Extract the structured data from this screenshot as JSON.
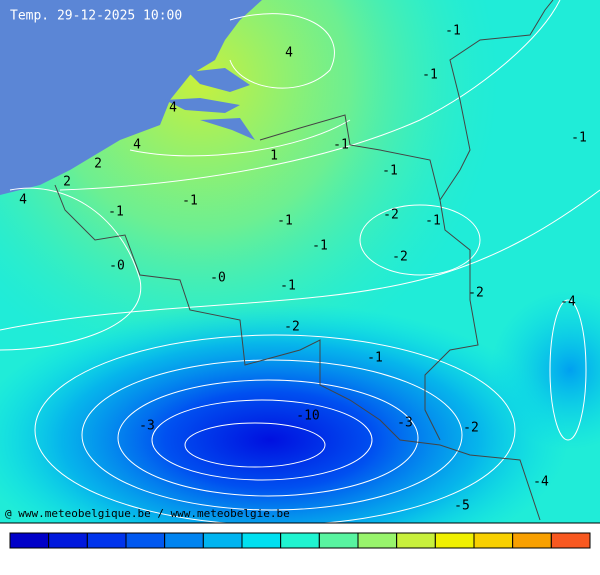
{
  "header": {
    "title": "Temp. 29-12-2025 10:00"
  },
  "contour_labels": [
    "4",
    "-1",
    "-1",
    "4",
    "4",
    "1",
    "-1",
    "2",
    "2",
    "4",
    "-1",
    "-1",
    "-1",
    "-1",
    "-1",
    "-2",
    "-1",
    "-1",
    "-0",
    "-2",
    "-0",
    "-1",
    "-2",
    "-4",
    "-2",
    "-1",
    "-10",
    "-3",
    "-3",
    "-2",
    "-4",
    "-5"
  ],
  "credit": "@ www.meteobelgique.be / www.meteobelgie.be",
  "colorbar": [
    "#0000c8",
    "#0018dc",
    "#0034ec",
    "#0058f0",
    "#0084f0",
    "#00b4f0",
    "#00e0f0",
    "#20f4d0",
    "#58f4a0",
    "#98f46c",
    "#c8f03c",
    "#f0f000",
    "#f8d000",
    "#f8a000",
    "#f85820"
  ]
}
